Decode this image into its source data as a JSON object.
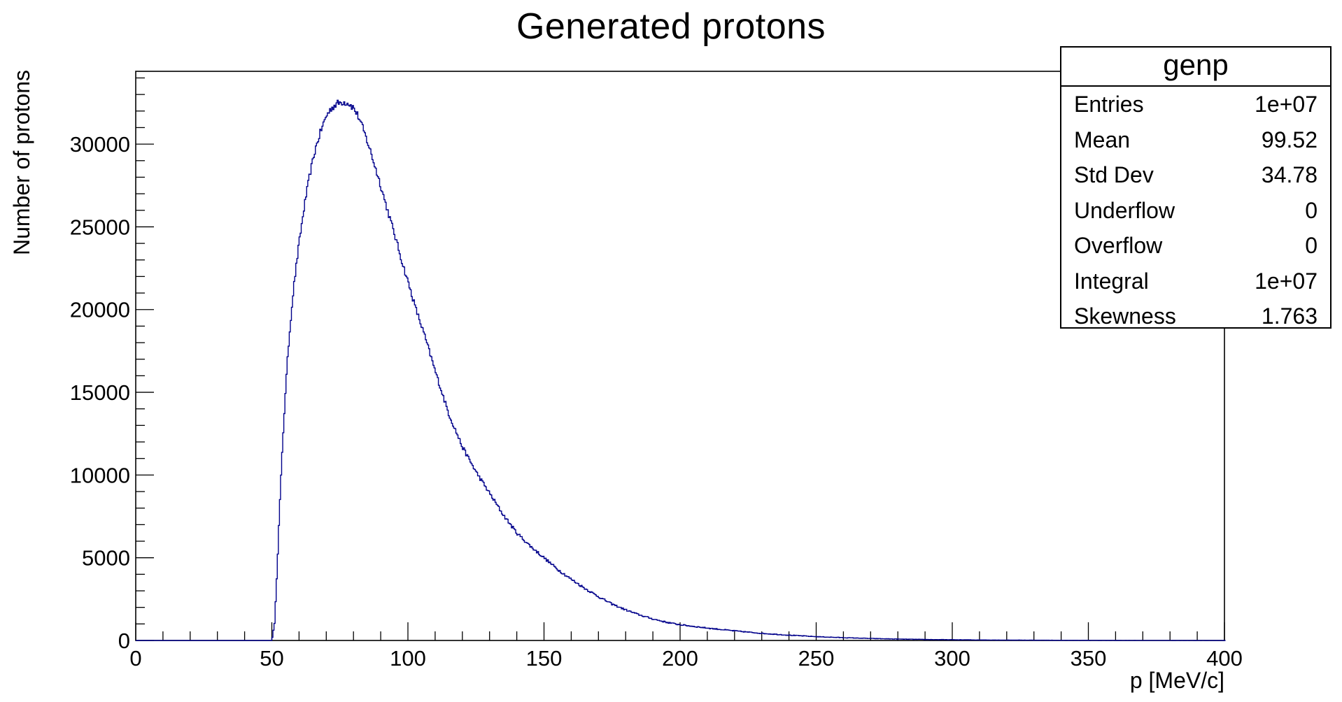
{
  "chart_data": {
    "type": "histogram",
    "title": "Generated protons",
    "xlabel": "p [MeV/c]",
    "ylabel": "Number of protons",
    "xlim": [
      0,
      400
    ],
    "ylim": [
      0,
      34400
    ],
    "x_ticks": [
      0,
      50,
      100,
      150,
      200,
      250,
      300,
      350,
      400
    ],
    "y_ticks": [
      0,
      5000,
      10000,
      15000,
      20000,
      25000,
      30000
    ],
    "line_color": "#00008b",
    "grid": false,
    "legend": "none",
    "series": [
      {
        "x": [
          50,
          51,
          52,
          53,
          54,
          55,
          56,
          57,
          58,
          60,
          62,
          64,
          66,
          68,
          70,
          72,
          74,
          76,
          78,
          80,
          82,
          84,
          86,
          88,
          90,
          92,
          95,
          98,
          100,
          103,
          106,
          110,
          115,
          120,
          125,
          130,
          135,
          140,
          145,
          150,
          155,
          160,
          165,
          170,
          175,
          180,
          185,
          190,
          195,
          200,
          210,
          220,
          230,
          240,
          250,
          260,
          270,
          280,
          290,
          300,
          310,
          320,
          330,
          340,
          350,
          360,
          370,
          380,
          390,
          400
        ],
        "y": [
          0,
          1000,
          4500,
          8500,
          12000,
          15000,
          17500,
          19500,
          21300,
          24000,
          26300,
          28200,
          29700,
          30800,
          31700,
          32200,
          32450,
          32550,
          32500,
          32200,
          31600,
          30700,
          29700,
          28600,
          27500,
          26300,
          24600,
          22800,
          21700,
          20000,
          18500,
          16300,
          13700,
          11700,
          10200,
          8900,
          7600,
          6500,
          5700,
          5000,
          4300,
          3700,
          3150,
          2650,
          2200,
          1850,
          1550,
          1300,
          1100,
          950,
          750,
          580,
          430,
          320,
          230,
          170,
          120,
          85,
          60,
          45,
          32,
          24,
          18,
          12,
          8,
          5,
          3,
          2,
          1,
          0
        ]
      }
    ]
  },
  "stats_box": {
    "title": "genp",
    "rows": [
      {
        "label": "Entries",
        "value": "1e+07"
      },
      {
        "label": "Mean",
        "value": "99.52"
      },
      {
        "label": "Std Dev",
        "value": "34.78"
      },
      {
        "label": "Underflow",
        "value": "0"
      },
      {
        "label": "Overflow",
        "value": "0"
      },
      {
        "label": "Integral",
        "value": "1e+07"
      },
      {
        "label": "Skewness",
        "value": "1.763"
      }
    ]
  }
}
